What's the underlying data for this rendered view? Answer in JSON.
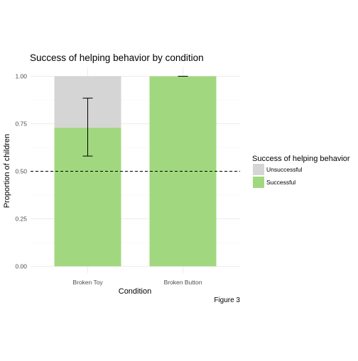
{
  "chart_data": {
    "type": "bar",
    "stacked": true,
    "title": "Success of helping behavior by condition",
    "xlabel": "Condition",
    "ylabel": "Proportion of children",
    "caption": "Figure 3",
    "categories": [
      "Broken Toy",
      "Broken Button"
    ],
    "series": [
      {
        "name": "Unsuccessful",
        "values": [
          0.27,
          0.0
        ],
        "color": "#d5d5d5"
      },
      {
        "name": "Successful",
        "values": [
          0.73,
          1.0
        ],
        "color": "#a1d87f"
      }
    ],
    "error_bars": [
      {
        "category": "Broken Toy",
        "low": 0.58,
        "high": 0.885
      },
      {
        "category": "Broken Button",
        "low": 1.0,
        "high": 1.0
      }
    ],
    "reference_line": {
      "y": 0.5,
      "style": "dashed"
    },
    "ylim": [
      0,
      1
    ],
    "yticks": [
      "0.00",
      "0.25",
      "0.50",
      "0.75",
      "1.00"
    ],
    "legend": {
      "title": "Success of helping behavior",
      "position": "right"
    },
    "grid": true
  }
}
